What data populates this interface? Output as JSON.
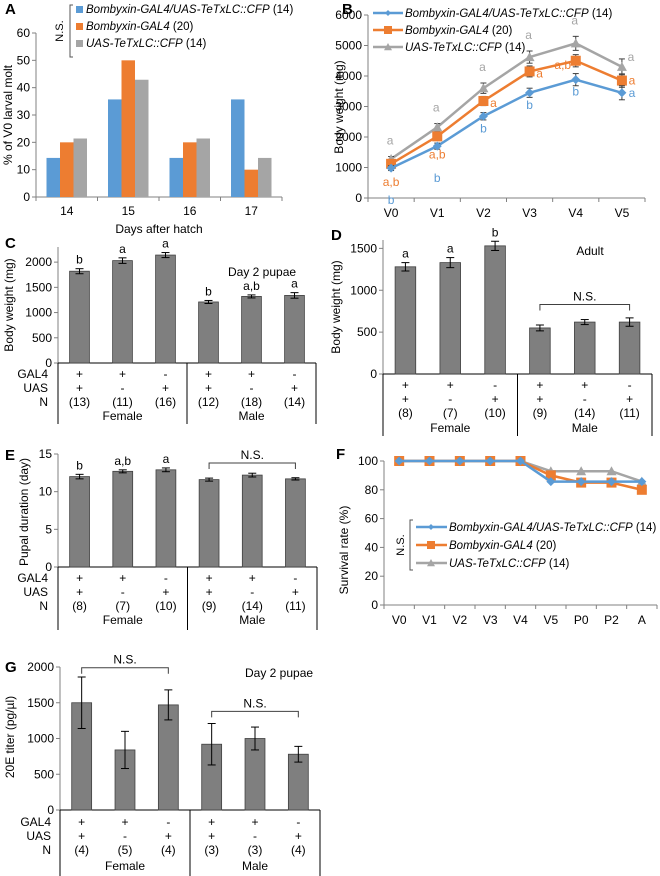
{
  "colors": {
    "blue": "#5b9bd5",
    "orange": "#ed7d31",
    "gray": "#a5a5a5",
    "bar": "#7f7f7f",
    "axis": "#808080",
    "text": "#000000"
  },
  "chart_data": [
    {
      "panel": "A",
      "type": "bar",
      "xlabel": "Days after hatch",
      "ylabel": "% of V0 larval molt",
      "ylim": [
        0,
        60
      ],
      "yticks": [
        0,
        10,
        20,
        30,
        40,
        50,
        60
      ],
      "categories": [
        "14",
        "15",
        "16",
        "17"
      ],
      "legend_annotation": "N.S.",
      "legend_position": "top",
      "series": [
        {
          "name": "Bombyxin-GAL4/UAS-TeTxLC::CFP",
          "n": "(14)",
          "color": "#5b9bd5",
          "values": [
            14.3,
            35.7,
            14.3,
            35.7
          ]
        },
        {
          "name": "Bombyxin-GAL4",
          "n": "(20)",
          "color": "#ed7d31",
          "values": [
            20,
            50,
            20,
            10
          ]
        },
        {
          "name": "UAS-TeTxLC::CFP",
          "n": "(14)",
          "color": "#a5a5a5",
          "values": [
            21.4,
            42.9,
            21.4,
            14.3
          ]
        }
      ]
    },
    {
      "panel": "B",
      "type": "line",
      "xlabel": "",
      "ylabel": "Body weight (mg)",
      "ylim": [
        0,
        6000
      ],
      "yticks": [
        0,
        1000,
        2000,
        3000,
        4000,
        5000,
        6000
      ],
      "categories": [
        "V0",
        "V1",
        "V2",
        "V3",
        "V4",
        "V5"
      ],
      "legend_position": "top-left",
      "series": [
        {
          "name": "Bombyxin-GAL4/UAS-TeTxLC::CFP",
          "n": "(14)",
          "color": "#5b9bd5",
          "marker": "diamond",
          "values": [
            980,
            1700,
            2680,
            3450,
            3880,
            3450
          ],
          "errors": [
            80,
            100,
            120,
            150,
            200,
            230
          ],
          "labels": [
            "b",
            "b",
            "b",
            "b",
            "b",
            "a"
          ]
        },
        {
          "name": "Bombyxin-GAL4",
          "n": "(20)",
          "color": "#ed7d31",
          "marker": "square",
          "values": [
            1120,
            2020,
            3180,
            4150,
            4500,
            3850
          ],
          "errors": [
            90,
            120,
            150,
            180,
            200,
            220
          ],
          "labels": [
            "a,b",
            "a,b",
            "a",
            "a",
            "a,b",
            "a"
          ]
        },
        {
          "name": "UAS-TeTxLC::CFP",
          "n": "(14)",
          "color": "#a5a5a5",
          "marker": "triangle",
          "values": [
            1280,
            2320,
            3600,
            4620,
            5070,
            4300
          ],
          "errors": [
            80,
            120,
            170,
            200,
            230,
            260
          ],
          "labels": [
            "a",
            "a",
            "a",
            "a",
            "a",
            "a"
          ]
        }
      ]
    },
    {
      "panel": "C",
      "type": "bar",
      "ylabel": "Body weight (mg)",
      "annotation": "Day 2 pupae",
      "ylim": [
        0,
        2300
      ],
      "yticks": [
        0,
        500,
        1000,
        1500,
        2000
      ],
      "values": [
        1820,
        2030,
        2140,
        1210,
        1320,
        1340
      ],
      "errors": [
        50,
        55,
        50,
        30,
        30,
        55
      ],
      "sig_labels": [
        "b",
        "a",
        "a",
        "b",
        "a,b",
        "a"
      ],
      "gal4": [
        "+",
        "+",
        "-",
        "+",
        "+",
        "-"
      ],
      "uas": [
        "+",
        "-",
        "+",
        "+",
        "-",
        "+"
      ],
      "n": [
        "(13)",
        "(11)",
        "(16)",
        "(12)",
        "(18)",
        "(14)"
      ],
      "groups": [
        "Female",
        "Male"
      ],
      "ns_brackets": []
    },
    {
      "panel": "D",
      "type": "bar",
      "ylabel": "Body weight (mg)",
      "annotation": "Adult",
      "ylim": [
        0,
        1600
      ],
      "yticks": [
        0,
        500,
        1000,
        1500
      ],
      "values": [
        1280,
        1330,
        1530,
        550,
        620,
        620
      ],
      "errors": [
        50,
        60,
        55,
        35,
        30,
        50
      ],
      "sig_labels": [
        "a",
        "a",
        "b",
        "",
        "",
        ""
      ],
      "gal4": [
        "+",
        "+",
        "-",
        "+",
        "+",
        "-"
      ],
      "uas": [
        "+",
        "-",
        "+",
        "+",
        "-",
        "+"
      ],
      "n": [
        "(8)",
        "(7)",
        "(10)",
        "(9)",
        "(14)",
        "(11)"
      ],
      "groups": [
        "Female",
        "Male"
      ],
      "ns_brackets": [
        {
          "from": 3,
          "to": 5,
          "label": "N.S.",
          "level": 830
        }
      ]
    },
    {
      "panel": "E",
      "type": "bar",
      "ylabel": "Pupal  duration (day)",
      "annotation": "",
      "ylim": [
        0,
        15
      ],
      "yticks": [
        0,
        5,
        10,
        15
      ],
      "values": [
        12.0,
        12.7,
        12.9,
        11.6,
        12.2,
        11.7
      ],
      "errors": [
        0.3,
        0.2,
        0.25,
        0.2,
        0.25,
        0.15
      ],
      "sig_labels": [
        "b",
        "a,b",
        "a",
        "",
        "",
        ""
      ],
      "gal4": [
        "+",
        "+",
        "-",
        "+",
        "+",
        "-"
      ],
      "uas": [
        "+",
        "-",
        "+",
        "+",
        "-",
        "+"
      ],
      "n": [
        "(8)",
        "(7)",
        "(10)",
        "(9)",
        "(14)",
        "(11)"
      ],
      "groups": [
        "Female",
        "Male"
      ],
      "ns_brackets": [
        {
          "from": 3,
          "to": 5,
          "label": "N.S.",
          "level": 13.8
        }
      ]
    },
    {
      "panel": "F",
      "type": "line",
      "ylabel": "Survival rate (%)",
      "ylim": [
        0,
        100
      ],
      "yticks": [
        0,
        20,
        40,
        60,
        80,
        100
      ],
      "categories": [
        "V0",
        "V1",
        "V2",
        "V3",
        "V4",
        "V5",
        "P0",
        "P2",
        "A"
      ],
      "legend_annotation": "N.S.",
      "legend_position": "center-left",
      "series": [
        {
          "name": "Bombyxin-GAL4/UAS-TeTxLC::CFP",
          "n": "(14)",
          "color": "#5b9bd5",
          "marker": "diamond",
          "values": [
            100,
            100,
            100,
            100,
            100,
            85.7,
            85.7,
            85.7,
            85.7
          ]
        },
        {
          "name": "Bombyxin-GAL4",
          "n": "(20)",
          "color": "#ed7d31",
          "marker": "square",
          "values": [
            100,
            100,
            100,
            100,
            100,
            90,
            85,
            85,
            80
          ]
        },
        {
          "name": "UAS-TeTxLC::CFP",
          "n": "(14)",
          "color": "#a5a5a5",
          "marker": "triangle",
          "values": [
            100,
            100,
            100,
            100,
            100,
            92.9,
            92.9,
            92.9,
            85.7
          ]
        }
      ]
    },
    {
      "panel": "G",
      "type": "bar",
      "ylabel": "20E titer (pg/µl)",
      "annotation": "Day 2 pupae",
      "ylim": [
        0,
        2000
      ],
      "yticks": [
        0,
        500,
        1000,
        1500,
        2000
      ],
      "values": [
        1500,
        840,
        1470,
        920,
        1000,
        780
      ],
      "errors": [
        360,
        260,
        210,
        290,
        160,
        110
      ],
      "sig_labels": [
        "",
        "",
        "",
        "",
        "",
        ""
      ],
      "gal4": [
        "+",
        "+",
        "-",
        "+",
        "+",
        "-"
      ],
      "uas": [
        "+",
        "-",
        "+",
        "+",
        "-",
        "+"
      ],
      "n": [
        "(4)",
        "(5)",
        "(4)",
        "(3)",
        "(3)",
        "(4)"
      ],
      "groups": [
        "Female",
        "Male"
      ],
      "ns_brackets": [
        {
          "from": 0,
          "to": 2,
          "label": "N.S.",
          "level": 1990
        },
        {
          "from": 3,
          "to": 5,
          "label": "N.S.",
          "level": 1380
        }
      ]
    }
  ],
  "row_labels": {
    "gal4": "GAL4",
    "uas": "UAS",
    "n": "N"
  },
  "panel_letters": [
    "A",
    "B",
    "C",
    "D",
    "E",
    "F",
    "G"
  ]
}
